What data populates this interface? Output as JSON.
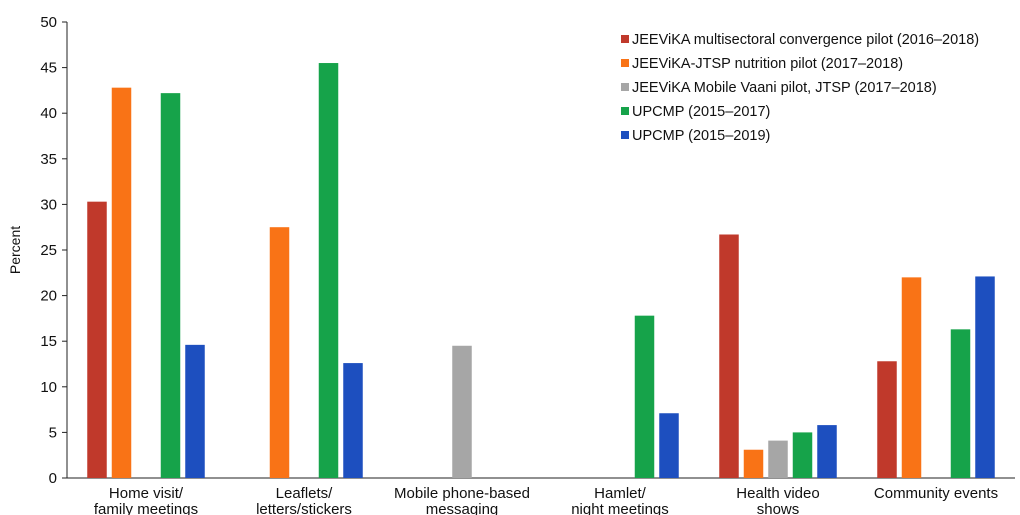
{
  "chart_data": {
    "type": "bar",
    "title": "",
    "xlabel": "",
    "ylabel": "Percent",
    "ylim": [
      0,
      50
    ],
    "yticks": [
      0,
      5,
      10,
      15,
      20,
      25,
      30,
      35,
      40,
      45,
      50
    ],
    "grid": false,
    "legend_position": "top-right",
    "categories": [
      [
        "Home visit/",
        "family meetings"
      ],
      [
        "Leaflets/",
        "letters/stickers"
      ],
      [
        "Mobile phone-based",
        "messaging"
      ],
      [
        "Hamlet/",
        "night meetings"
      ],
      [
        "Health video",
        "shows"
      ],
      [
        "Community events"
      ]
    ],
    "series": [
      {
        "name": "JEEViKA multisectoral convergence pilot (2016–2018)",
        "color": "#c0392b",
        "values": [
          30.3,
          null,
          null,
          null,
          26.7,
          12.8
        ]
      },
      {
        "name": "JEEViKA-JTSP nutrition pilot (2017–2018)",
        "color": "#f97316",
        "values": [
          42.8,
          27.5,
          null,
          null,
          3.1,
          22.0
        ]
      },
      {
        "name": "JEEViKA Mobile Vaani pilot, JTSP (2017–2018)",
        "color": "#a6a6a6",
        "values": [
          null,
          null,
          14.5,
          null,
          4.1,
          null
        ]
      },
      {
        "name": "UPCMP (2015–2017)",
        "color": "#16a34a",
        "values": [
          42.2,
          45.5,
          null,
          17.8,
          5.0,
          16.3
        ]
      },
      {
        "name": "UPCMP (2015–2019)",
        "color": "#1d4fbf",
        "values": [
          14.6,
          12.6,
          null,
          7.1,
          5.8,
          22.1
        ]
      }
    ]
  }
}
